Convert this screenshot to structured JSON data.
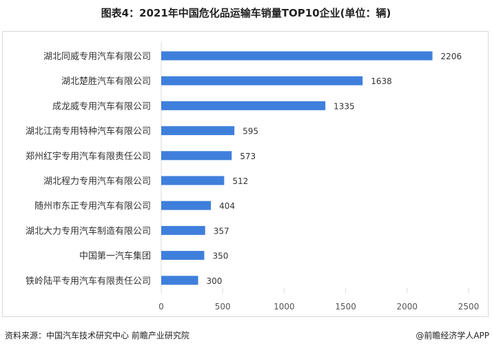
{
  "chart_data": {
    "type": "bar",
    "orientation": "horizontal",
    "title": "图表4：2021年中国危化品运输车销量TOP10企业(单位：辆)",
    "categories": [
      "湖北同威专用汽车有限公司",
      "湖北楚胜汽车有限公司",
      "成龙威专用汽车有限公司",
      "湖北江南专用特种汽车有限公司",
      "郑州红宇专用汽车有限责任公司",
      "湖北程力专用汽车有限公司",
      "随州市东正专用汽车有限公司",
      "湖北大力专用汽车制造有限公司",
      "中国第一汽车集团",
      "铁岭陆平专用汽车有限责任公司"
    ],
    "values": [
      2206,
      1638,
      1335,
      595,
      573,
      512,
      404,
      357,
      350,
      300
    ],
    "xlim": [
      0,
      2500
    ],
    "xticks": [
      "0",
      "500",
      "1000",
      "1500",
      "2000",
      "2500"
    ],
    "xlabel": "",
    "ylabel": "",
    "bar_color": "#3f7fdc",
    "grid": false
  },
  "footer": {
    "source": "资料来源：中国汽车技术研究中心 前瞻产业研究院",
    "credit": "@前瞻经济学人APP"
  }
}
